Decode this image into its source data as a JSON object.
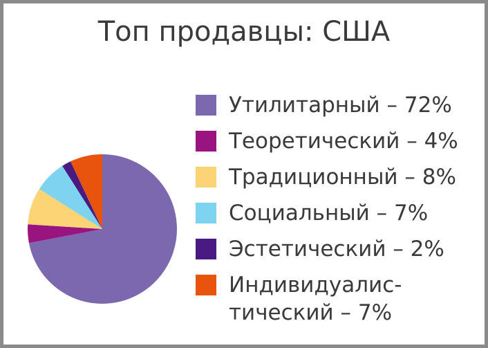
{
  "chart_data": {
    "type": "pie",
    "title": "Топ продавцы: США",
    "categories": [
      "Утилитарный – 72%",
      "Теоретический – 4%",
      "Традиционный – 8%",
      "Социальный – 7%",
      "Эстетический – 2%",
      "Индивидуалис-\nтический – 7%"
    ],
    "values": [
      72,
      4,
      8,
      7,
      2,
      7
    ],
    "colors": [
      "#7b68ae",
      "#9a1480",
      "#fcd375",
      "#7ed3f0",
      "#4a1a83",
      "#e8540e"
    ],
    "legend": "right"
  }
}
